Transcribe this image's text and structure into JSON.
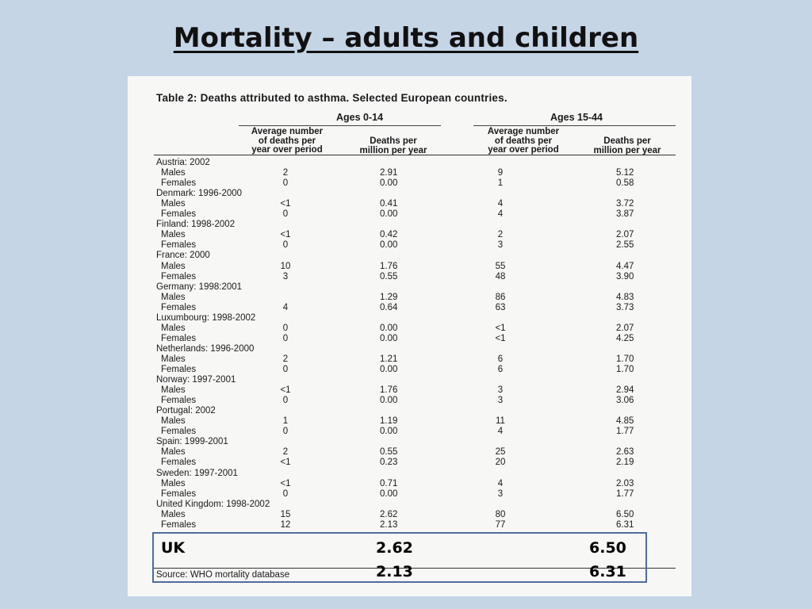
{
  "slide": {
    "title": "Mortality – adults and children"
  },
  "table": {
    "caption": "Table 2: Deaths attributed to asthma.  Selected European countries.",
    "group1": "Ages 0-14",
    "group2": "Ages 15-44",
    "col_avg": [
      "Average number",
      "of deaths per",
      "year over period"
    ],
    "col_rate": [
      "Deaths per",
      "million per year"
    ],
    "countries": [
      {
        "name": "Austria: 2002",
        "rows": [
          [
            "Males",
            "2",
            "2.91",
            "9",
            "5.12"
          ],
          [
            "Females",
            "0",
            "0.00",
            "1",
            "0.58"
          ]
        ]
      },
      {
        "name": "Denmark: 1996-2000",
        "rows": [
          [
            "Males",
            "<1",
            "0.41",
            "4",
            "3.72"
          ],
          [
            "Females",
            "0",
            "0.00",
            "4",
            "3.87"
          ]
        ]
      },
      {
        "name": "Finland: 1998-2002",
        "rows": [
          [
            "Males",
            "<1",
            "0.42",
            "2",
            "2.07"
          ],
          [
            "Females",
            "0",
            "0.00",
            "3",
            "2.55"
          ]
        ]
      },
      {
        "name": "France: 2000",
        "rows": [
          [
            "Males",
            "10",
            "1.76",
            "55",
            "4.47"
          ],
          [
            "Females",
            "3",
            "0.55",
            "48",
            "3.90"
          ]
        ]
      },
      {
        "name": "Germany: 1998:2001",
        "rows": [
          [
            "Males",
            "",
            "1.29",
            "86",
            "4.83"
          ],
          [
            "Females",
            "4",
            "0.64",
            "63",
            "3.73"
          ]
        ]
      },
      {
        "name": "Luxumbourg: 1998-2002",
        "rows": [
          [
            "Males",
            "0",
            "0.00",
            "<1",
            "2.07"
          ],
          [
            "Females",
            "0",
            "0.00",
            "<1",
            "4.25"
          ]
        ]
      },
      {
        "name": "Netherlands: 1996-2000",
        "rows": [
          [
            "Males",
            "2",
            "1.21",
            "6",
            "1.70"
          ],
          [
            "Females",
            "0",
            "0.00",
            "6",
            "1.70"
          ]
        ]
      },
      {
        "name": "Norway: 1997-2001",
        "rows": [
          [
            "Males",
            "<1",
            "1.76",
            "3",
            "2.94"
          ],
          [
            "Females",
            "0",
            "0.00",
            "3",
            "3.06"
          ]
        ]
      },
      {
        "name": "Portugal: 2002",
        "rows": [
          [
            "Males",
            "1",
            "1.19",
            "11",
            "4.85"
          ],
          [
            "Females",
            "0",
            "0.00",
            "4",
            "1.77"
          ]
        ]
      },
      {
        "name": "Spain: 1999-2001",
        "rows": [
          [
            "Males",
            "2",
            "0.55",
            "25",
            "2.63"
          ],
          [
            "Females",
            "<1",
            "0.23",
            "20",
            "2.19"
          ]
        ]
      },
      {
        "name": "Sweden: 1997-2001",
        "rows": [
          [
            "Males",
            "<1",
            "0.71",
            "4",
            "2.03"
          ],
          [
            "Females",
            "0",
            "0.00",
            "3",
            "1.77"
          ]
        ]
      },
      {
        "name": "United Kingdom: 1998-2002",
        "rows": [
          [
            "Males",
            "15",
            "2.62",
            "80",
            "6.50"
          ],
          [
            "Females",
            "12",
            "2.13",
            "77",
            "6.31"
          ]
        ]
      }
    ],
    "source": "Source: WHO mortality database"
  },
  "overlay": {
    "label": "UK",
    "child_rates": [
      "2.62",
      "2.13"
    ],
    "adult_rates": [
      "6.50",
      "6.31"
    ]
  }
}
